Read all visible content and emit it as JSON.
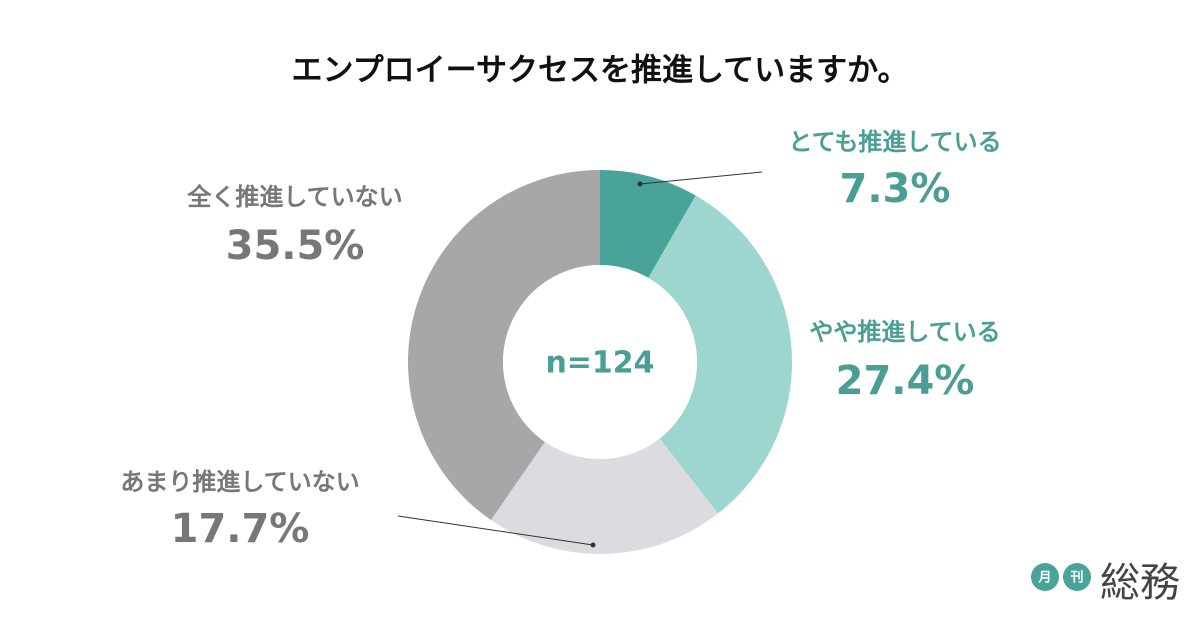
{
  "chart_data": {
    "type": "pie",
    "donut": true,
    "title": "エンプロイーサクセスを推進していますか。",
    "center_label": "n=124",
    "categories": [
      "とても推進している",
      "やや推進している",
      "あまり推進していない",
      "全く推進していない"
    ],
    "values": [
      7.3,
      27.4,
      17.7,
      35.5
    ],
    "value_labels": [
      "7.3%",
      "27.4%",
      "17.7%",
      "35.5%"
    ],
    "colors": [
      "#4aa399",
      "#9dd6cf",
      "#dcdce0",
      "#a7a6a9"
    ],
    "label_colors": [
      "#4a9e94",
      "#4a9e94",
      "#777777",
      "#777777"
    ]
  },
  "logo": {
    "small": [
      "月",
      "刊"
    ],
    "name": "総務"
  }
}
